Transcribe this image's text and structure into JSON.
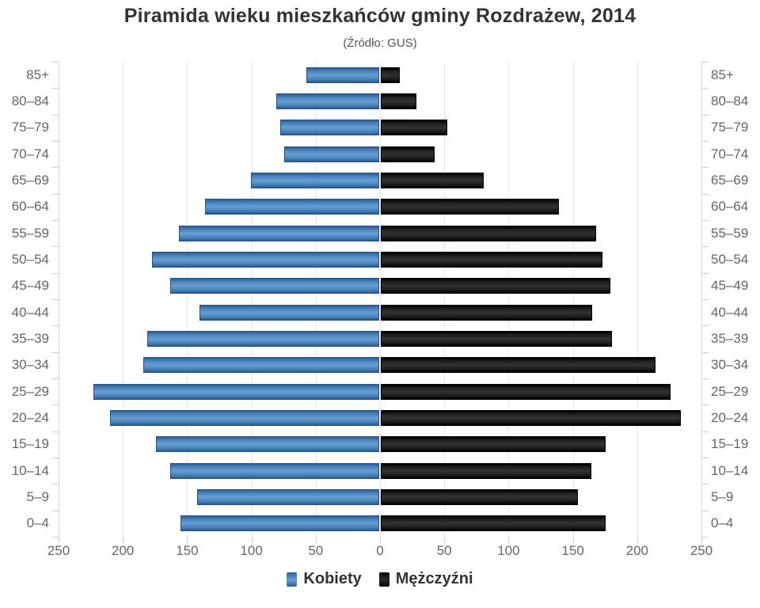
{
  "header": {
    "title": "Piramida wieku mieszkańców gminy Rozdrażew, 2014",
    "subtitle": "(Źródło: GUS)"
  },
  "chart_data": {
    "type": "bar",
    "variant": "population-pyramid",
    "title": "Piramida wieku mieszkańców gminy Rozdrażew, 2014",
    "subtitle": "(Źródło: GUS)",
    "categories": [
      "85+",
      "80–84",
      "75–79",
      "70–74",
      "65–69",
      "60–64",
      "55–59",
      "50–54",
      "45–49",
      "40–44",
      "35–39",
      "30–34",
      "25–29",
      "20–24",
      "15–19",
      "10–14",
      "5–9",
      "0–4"
    ],
    "series": [
      {
        "name": "Kobiety",
        "side": "left",
        "color": "#4a83ba",
        "values": [
          57,
          80,
          77,
          74,
          100,
          136,
          156,
          177,
          163,
          140,
          181,
          184,
          223,
          210,
          174,
          163,
          142,
          155
        ]
      },
      {
        "name": "Mężczyźni",
        "side": "right",
        "color": "#1a1a1a",
        "values": [
          15,
          28,
          52,
          42,
          80,
          139,
          168,
          173,
          179,
          165,
          180,
          214,
          226,
          234,
          175,
          164,
          154,
          175
        ]
      }
    ],
    "x_axis": {
      "tick_labels": [
        "250",
        "200",
        "150",
        "100",
        "50",
        "0",
        "50",
        "100",
        "150",
        "200",
        "250"
      ],
      "max_each_side": 250,
      "tick_interval": 50
    },
    "grid": true,
    "legend_position": "bottom"
  },
  "colors": {
    "kobiety_fill": "#4a83ba",
    "kobiety_highlight": "#679fd3",
    "kobiety_border": "#255280",
    "mezczyzni_fill": "#1a1a1a",
    "mezczyzni_highlight": "#323232",
    "gridline": "#e6e6e6",
    "axis": "#cccccc",
    "axis_label": "#666666",
    "title_text": "#333333"
  }
}
